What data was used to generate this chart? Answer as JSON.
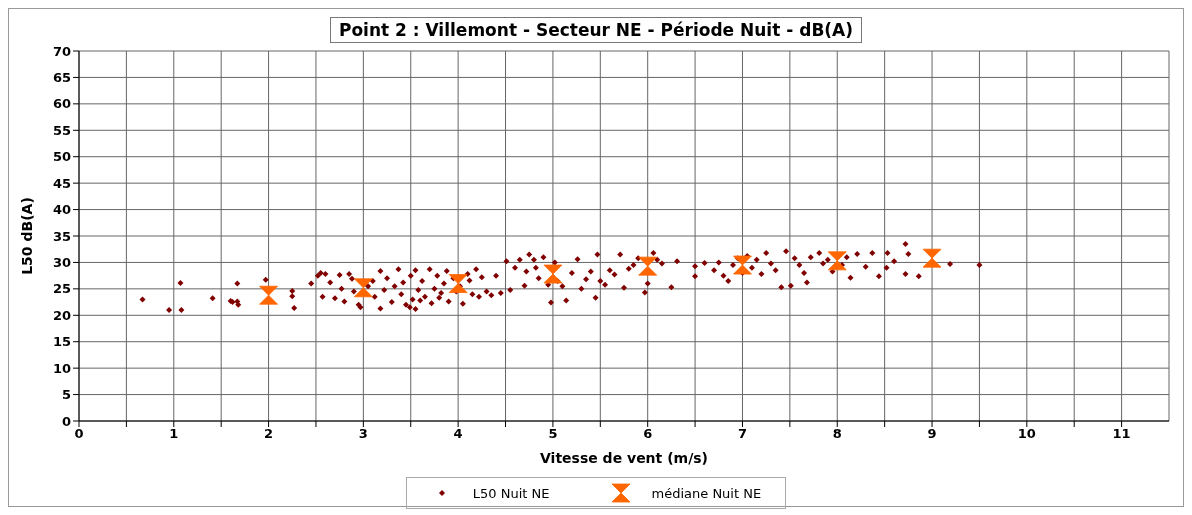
{
  "chart_data": {
    "type": "scatter",
    "title": "Point 2 : Villemont - Secteur NE  - Période Nuit - dB(A)",
    "xlabel": "Vitesse de vent (m/s)",
    "ylabel": "L50 dB(A)",
    "xlim": [
      0,
      11.5
    ],
    "xticks": [
      0,
      {
        "value": 0.5,
        "label": null
      },
      1,
      {
        "value": 1.5,
        "label": null
      },
      2,
      {
        "value": 2.5,
        "label": null
      },
      3,
      {
        "value": 3.5,
        "label": null
      },
      4,
      {
        "value": 4.5,
        "label": null
      },
      5,
      {
        "value": 5.5,
        "label": null
      },
      6,
      {
        "value": 6.5,
        "label": null
      },
      7,
      {
        "value": 7.5,
        "label": null
      },
      8,
      {
        "value": 8.5,
        "label": null
      },
      9,
      {
        "value": 9.5,
        "label": null
      },
      10,
      {
        "value": 10.5,
        "label": null
      },
      11
    ],
    "ylim": [
      0,
      70
    ],
    "yticks": [
      0,
      5,
      10,
      15,
      20,
      25,
      30,
      35,
      40,
      45,
      50,
      55,
      60,
      65,
      70
    ],
    "grid": true,
    "legend": "bottom",
    "series": [
      {
        "name": "L50 Nuit NE",
        "color": "#800000",
        "marker": "diamond",
        "x": [
          0.67,
          0.95,
          1.07,
          1.08,
          1.41,
          1.6,
          1.62,
          1.67,
          1.67,
          1.68,
          1.97,
          2.25,
          2.25,
          2.27,
          2.45,
          2.52,
          2.55,
          2.6,
          2.57,
          2.65,
          2.7,
          2.75,
          2.77,
          2.8,
          2.85,
          2.88,
          2.9,
          2.95,
          2.97,
          3.05,
          3.1,
          3.12,
          3.18,
          3.18,
          3.22,
          3.25,
          3.3,
          3.33,
          3.37,
          3.4,
          3.42,
          3.45,
          3.49,
          3.5,
          3.52,
          3.55,
          3.55,
          3.58,
          3.6,
          3.62,
          3.65,
          3.7,
          3.72,
          3.75,
          3.78,
          3.8,
          3.82,
          3.85,
          3.88,
          3.9,
          3.95,
          3.98,
          4.02,
          4.05,
          4.1,
          4.12,
          4.15,
          4.19,
          4.22,
          4.25,
          4.3,
          4.35,
          4.4,
          4.45,
          4.51,
          4.55,
          4.6,
          4.65,
          4.7,
          4.72,
          4.75,
          4.8,
          4.82,
          4.85,
          4.9,
          4.95,
          4.98,
          5.02,
          5.05,
          5.1,
          5.14,
          5.2,
          5.26,
          5.3,
          5.35,
          5.4,
          5.45,
          5.47,
          5.5,
          5.55,
          5.6,
          5.65,
          5.71,
          5.75,
          5.8,
          5.85,
          5.9,
          5.97,
          6.0,
          6.06,
          6.1,
          6.15,
          6.25,
          6.31,
          6.5,
          6.5,
          6.6,
          6.7,
          6.75,
          6.8,
          6.85,
          6.9,
          6.95,
          7.0,
          7.05,
          7.1,
          7.15,
          7.2,
          7.25,
          7.3,
          7.35,
          7.41,
          7.46,
          7.51,
          7.55,
          7.6,
          7.65,
          7.68,
          7.72,
          7.81,
          7.85,
          7.9,
          7.95,
          8.05,
          8.1,
          8.14,
          8.21,
          8.3,
          8.37,
          8.44,
          8.52,
          8.53,
          8.6,
          8.72,
          8.75,
          8.72,
          8.86,
          9.19,
          9.5
        ],
        "values": [
          23,
          21,
          26.1,
          21,
          23.2,
          22.7,
          22.5,
          26,
          22.6,
          22,
          26.7,
          24.6,
          23.6,
          21.4,
          26,
          27.5,
          28,
          27.8,
          23.5,
          26.2,
          23.2,
          27.6,
          25,
          22.6,
          27.8,
          26.9,
          24.5,
          22,
          21.5,
          25.5,
          26.5,
          23.5,
          28.4,
          21.3,
          24.8,
          27,
          22.5,
          25.5,
          28.7,
          24,
          26.2,
          22,
          21.5,
          27.5,
          23,
          28.5,
          21.2,
          24.8,
          22.8,
          26.5,
          23.5,
          28.7,
          22.3,
          25,
          27.5,
          23.3,
          24.2,
          26,
          28.4,
          22.6,
          27,
          24.5,
          25.5,
          22.2,
          27.8,
          26.6,
          24,
          28.7,
          23.5,
          27.2,
          24.5,
          23.8,
          27.5,
          24.2,
          30.2,
          24.8,
          29,
          30.5,
          25.6,
          28.3,
          31.5,
          30.5,
          29,
          27,
          31,
          25.8,
          22.4,
          30,
          26.5,
          25.5,
          22.8,
          28,
          30.6,
          25,
          26.8,
          28.3,
          23.3,
          31.5,
          26.5,
          25.8,
          28.5,
          27.7,
          31.5,
          25.2,
          28.8,
          29.5,
          30.8,
          24.3,
          26,
          31.8,
          30.5,
          29.8,
          25.3,
          30.2,
          29.3,
          27.4,
          29.9,
          28.5,
          30,
          27.5,
          26.5,
          29.5,
          30.8,
          28,
          31.2,
          29,
          30.5,
          27.8,
          31.8,
          29.8,
          28.5,
          25.3,
          32.1,
          25.6,
          30.8,
          29.5,
          28,
          26.2,
          31,
          31.8,
          29.8,
          30.5,
          28.3,
          29.5,
          31,
          27.1,
          31.6,
          29.2,
          31.8,
          27.4,
          29,
          31.8,
          30.2,
          33.5,
          31.6,
          27.8,
          27.4,
          29.7,
          29.5
        ]
      },
      {
        "name": "médiane Nuit NE",
        "color": "#ff6600",
        "x": [
          2,
          3,
          4,
          5,
          6,
          7,
          8,
          9
        ],
        "values": [
          23.8,
          25.2,
          26,
          27.8,
          29.3,
          29.5,
          30.3,
          30.8
        ]
      }
    ]
  }
}
